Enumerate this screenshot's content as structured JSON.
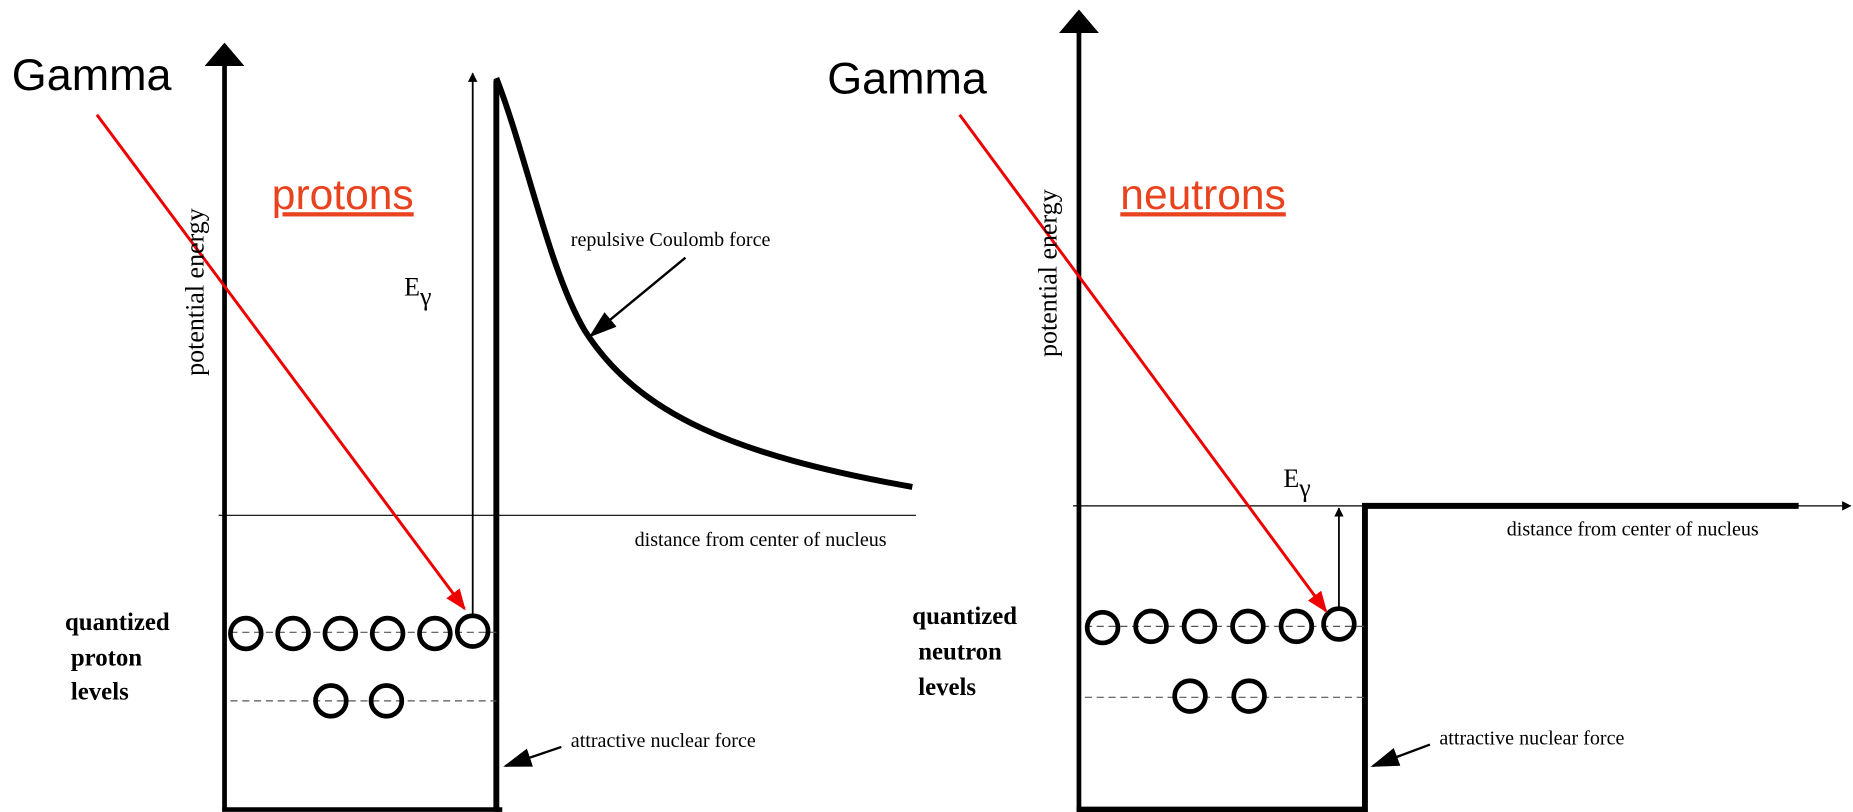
{
  "left": {
    "gamma": "Gamma",
    "particle": "protons",
    "y_axis": "potential energy",
    "coulomb": "repulsive Coulomb force",
    "energy": {
      "label": "E",
      "subscript": "γ"
    },
    "x_axis": "distance from center of nucleus",
    "levels": [
      "quantized",
      "proton",
      "levels"
    ],
    "nuclear": "attractive nuclear force"
  },
  "right": {
    "gamma": "Gamma",
    "particle": "neutrons",
    "y_axis": "potential energy",
    "energy": {
      "label": "E",
      "subscript": "γ"
    },
    "x_axis": "distance from center of nucleus",
    "levels": [
      "quantized",
      "neutron",
      "levels"
    ],
    "nuclear": "attractive nuclear force"
  }
}
